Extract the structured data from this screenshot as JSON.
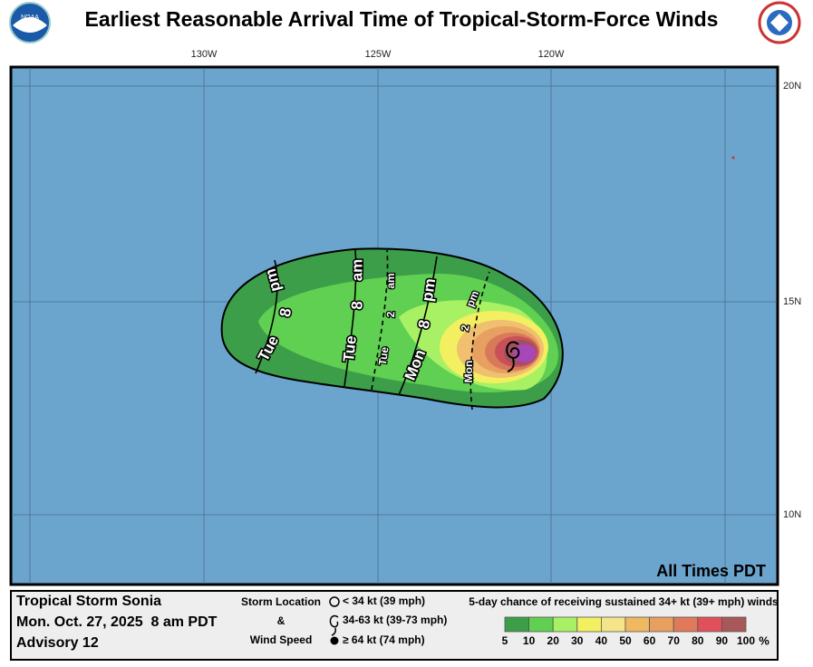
{
  "title": "Earliest Reasonable Arrival Time of Tropical-Storm-Force Winds",
  "map": {
    "lon_labels": [
      "130W",
      "125W",
      "120W"
    ],
    "lat_labels": [
      "20N",
      "15N",
      "10N"
    ],
    "time_labels": [
      [
        "Tue",
        "8",
        "pm"
      ],
      [
        "Tue",
        "8",
        "am"
      ],
      [
        "Tue",
        "2",
        "am"
      ],
      [
        "Mon",
        "8",
        "pm"
      ],
      [
        "Mon",
        "2",
        "pm"
      ]
    ],
    "note": "All Times PDT"
  },
  "footer": {
    "storm": "Tropical Storm Sonia",
    "date": "Mon. Oct. 27, 2025  8 am PDT",
    "advisory": "Advisory 12",
    "key_title": [
      "Storm Location",
      "&",
      "Wind Speed"
    ],
    "key_items": [
      "< 34 kt (39 mph)",
      "34-63 kt (39-73 mph)",
      "≥ 64 kt (74 mph)"
    ],
    "legend_title": "5-day chance of receiving sustained 34+ kt (39+ mph) winds",
    "legend_ticks": [
      "5",
      "10",
      "20",
      "30",
      "40",
      "50",
      "60",
      "70",
      "80",
      "90",
      "100"
    ],
    "legend_unit": "%",
    "legend_colors": [
      "#3c9e48",
      "#5fd052",
      "#a8f064",
      "#f2f060",
      "#f4e48a",
      "#f0b860",
      "#e8a060",
      "#e07a5a",
      "#e0505a",
      "#a85858",
      "#b050c0"
    ]
  }
}
